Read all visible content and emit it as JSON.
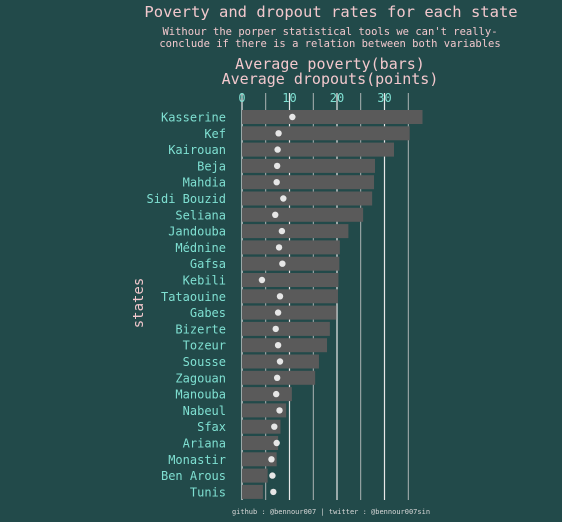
{
  "chart_data": {
    "type": "bar",
    "title": "Poverty and dropout rates for each state",
    "subtitle": [
      "Withour the porper statistical tools we can't really-",
      "conclude if there is a relation between both variables"
    ],
    "xlabel": [
      "Average poverty(bars)",
      "Average dropouts(points)"
    ],
    "ylabel": "states",
    "xlim": [
      0,
      38
    ],
    "xticks": [
      0,
      10,
      20,
      30
    ],
    "grid": true,
    "footer": "github : @bennour007 | twitter : @bennour007sin",
    "categories": [
      "Kasserine",
      "Kef",
      "Kairouan",
      "Beja",
      "Mahdia",
      "Sidi Bouzid",
      "Seliana",
      "Jandouba",
      "Médnine",
      "Gafsa",
      "Kebili",
      "Tataouine",
      "Gabes",
      "Bizerte",
      "Tozeur",
      "Sousse",
      "Zagouan",
      "Manouba",
      "Nabeul",
      "Sfax",
      "Ariana",
      "Monastir",
      "Ben Arous",
      "Tunis"
    ],
    "series": [
      {
        "name": "Average poverty",
        "mark": "bar",
        "color": "#5a5a5a",
        "values": [
          38.0,
          35.3,
          32.0,
          28.0,
          27.8,
          27.4,
          25.5,
          22.4,
          20.6,
          20.5,
          20.3,
          20.2,
          19.9,
          18.5,
          17.9,
          16.2,
          15.4,
          10.5,
          9.3,
          8.1,
          7.6,
          7.3,
          5.4,
          4.4
        ]
      },
      {
        "name": "Average dropouts",
        "mark": "point",
        "color": "#e6e6e6",
        "values": [
          10.6,
          7.7,
          7.5,
          7.4,
          7.3,
          8.7,
          7.0,
          8.4,
          7.8,
          8.5,
          4.2,
          8.0,
          7.6,
          7.1,
          7.6,
          8.0,
          7.4,
          7.2,
          7.9,
          6.8,
          7.3,
          6.2,
          6.4,
          6.6
        ]
      }
    ]
  }
}
